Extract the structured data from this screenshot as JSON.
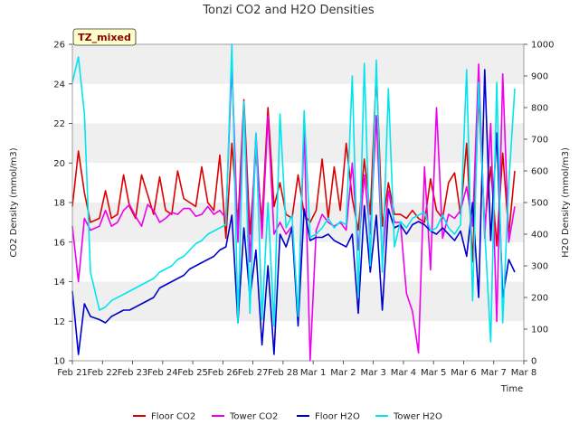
{
  "chart_data": {
    "type": "line",
    "title": "Tonzi CO2 and H2O Densities",
    "xlabel": "Time",
    "ylabel_left": "CO2 Density (mmol/m3)",
    "ylabel_right": "H2O Density (mmol/m3)",
    "tag": "TZ_mixed",
    "x_ticks": [
      "Feb 21",
      "Feb 22",
      "Feb 23",
      "Feb 24",
      "Feb 25",
      "Feb 26",
      "Feb 27",
      "Feb 28",
      "Mar 1",
      "Mar 2",
      "Mar 3",
      "Mar 4",
      "Mar 5",
      "Mar 6",
      "Mar 7",
      "Mar 8"
    ],
    "xlim_days": [
      0,
      15
    ],
    "ylim_left": [
      10,
      26
    ],
    "y_ticks_left": [
      10,
      12,
      14,
      16,
      18,
      20,
      22,
      24,
      26
    ],
    "ylim_right": [
      0,
      1000
    ],
    "y_ticks_right": [
      0,
      100,
      200,
      300,
      400,
      500,
      600,
      700,
      800,
      900,
      1000
    ],
    "grid": "horizontal bands",
    "legend_position": "bottom",
    "series": [
      {
        "name": "Floor CO2",
        "axis": "left",
        "color": "#dd0000",
        "x": [
          0.0,
          0.2,
          0.4,
          0.6,
          0.9,
          1.1,
          1.3,
          1.5,
          1.7,
          1.9,
          2.1,
          2.3,
          2.5,
          2.7,
          2.9,
          3.1,
          3.3,
          3.5,
          3.7,
          3.9,
          4.1,
          4.3,
          4.5,
          4.7,
          4.9,
          5.1,
          5.3,
          5.5,
          5.7,
          5.9,
          6.1,
          6.3,
          6.5,
          6.7,
          6.9,
          7.1,
          7.3,
          7.5,
          7.7,
          7.9,
          8.1,
          8.3,
          8.5,
          8.7,
          8.9,
          9.1,
          9.3,
          9.5,
          9.7,
          9.9,
          10.1,
          10.3,
          10.5,
          10.7,
          10.9,
          11.1,
          11.3,
          11.5,
          11.7,
          11.9,
          12.1,
          12.3,
          12.5,
          12.7,
          12.9,
          13.1,
          13.3,
          13.5,
          13.7,
          13.9,
          14.1,
          14.3,
          14.5,
          14.7
        ],
        "values": [
          17.8,
          20.6,
          18.5,
          17.0,
          17.2,
          18.6,
          17.2,
          17.4,
          19.4,
          17.8,
          17.2,
          19.4,
          18.4,
          17.4,
          19.3,
          17.6,
          17.4,
          19.6,
          18.2,
          18.0,
          17.8,
          19.8,
          18.0,
          17.6,
          20.4,
          16.2,
          21.0,
          17.0,
          23.2,
          16.4,
          20.5,
          17.0,
          22.8,
          17.8,
          19.0,
          17.4,
          17.2,
          19.4,
          17.4,
          17.0,
          17.6,
          20.2,
          17.2,
          19.8,
          17.6,
          21.0,
          18.2,
          16.6,
          20.2,
          17.4,
          24.6,
          16.8,
          19.0,
          17.4,
          17.4,
          17.2,
          17.6,
          17.2,
          17.0,
          19.2,
          17.6,
          17.2,
          19.0,
          19.5,
          17.4,
          21.0,
          15.0,
          23.5,
          16.8,
          19.8,
          15.8,
          20.5,
          16.4,
          19.6
        ]
      },
      {
        "name": "Tower CO2",
        "axis": "left",
        "color": "#ee00ee",
        "x": [
          0.0,
          0.2,
          0.4,
          0.6,
          0.9,
          1.1,
          1.3,
          1.5,
          1.7,
          1.9,
          2.1,
          2.3,
          2.5,
          2.7,
          2.9,
          3.1,
          3.3,
          3.5,
          3.7,
          3.9,
          4.1,
          4.3,
          4.5,
          4.7,
          4.9,
          5.1,
          5.3,
          5.5,
          5.7,
          5.9,
          6.1,
          6.3,
          6.5,
          6.7,
          6.9,
          7.1,
          7.3,
          7.5,
          7.7,
          7.9,
          8.1,
          8.3,
          8.5,
          8.7,
          8.9,
          9.1,
          9.3,
          9.5,
          9.7,
          9.9,
          10.1,
          10.3,
          10.5,
          10.7,
          10.9,
          11.1,
          11.3,
          11.5,
          11.7,
          11.9,
          12.1,
          12.3,
          12.5,
          12.7,
          12.9,
          13.1,
          13.3,
          13.5,
          13.7,
          13.9,
          14.1,
          14.3,
          14.5,
          14.7
        ],
        "values": [
          16.8,
          14.0,
          17.2,
          16.6,
          16.8,
          17.6,
          16.8,
          17.0,
          17.6,
          17.9,
          17.3,
          16.8,
          17.9,
          17.6,
          17.0,
          17.2,
          17.5,
          17.4,
          17.7,
          17.7,
          17.3,
          17.4,
          17.8,
          17.4,
          17.6,
          17.2,
          25.0,
          16.0,
          23.0,
          15.0,
          21.5,
          16.2,
          22.4,
          16.4,
          17.0,
          16.4,
          16.8,
          12.0,
          21.8,
          10.0,
          16.6,
          17.4,
          17.0,
          16.8,
          17.0,
          16.6,
          20.0,
          15.6,
          19.4,
          16.4,
          22.4,
          15.0,
          18.6,
          17.0,
          17.0,
          13.4,
          12.5,
          10.4,
          19.8,
          14.6,
          22.8,
          16.2,
          17.4,
          17.2,
          17.6,
          18.8,
          16.8,
          25.0,
          16.2,
          22.0,
          12.0,
          24.5,
          16.0,
          17.8
        ]
      },
      {
        "name": "Floor H2O",
        "axis": "right",
        "color": "#0000cc",
        "x": [
          0.0,
          0.2,
          0.4,
          0.6,
          0.9,
          1.1,
          1.3,
          1.5,
          1.7,
          1.9,
          2.1,
          2.3,
          2.5,
          2.7,
          2.9,
          3.1,
          3.3,
          3.5,
          3.7,
          3.9,
          4.1,
          4.3,
          4.5,
          4.7,
          4.9,
          5.1,
          5.3,
          5.5,
          5.7,
          5.9,
          6.1,
          6.3,
          6.5,
          6.7,
          6.9,
          7.1,
          7.3,
          7.5,
          7.7,
          7.9,
          8.1,
          8.3,
          8.5,
          8.7,
          8.9,
          9.1,
          9.3,
          9.5,
          9.7,
          9.9,
          10.1,
          10.3,
          10.5,
          10.7,
          10.9,
          11.1,
          11.3,
          11.5,
          11.7,
          11.9,
          12.1,
          12.3,
          12.5,
          12.7,
          12.9,
          13.1,
          13.3,
          13.5,
          13.7,
          13.9,
          14.1,
          14.3,
          14.5,
          14.7
        ],
        "values": [
          220,
          20,
          180,
          140,
          130,
          120,
          140,
          150,
          160,
          160,
          170,
          180,
          190,
          200,
          230,
          240,
          250,
          260,
          270,
          290,
          300,
          310,
          320,
          330,
          350,
          360,
          460,
          120,
          420,
          200,
          350,
          50,
          300,
          20,
          400,
          360,
          420,
          110,
          480,
          380,
          390,
          390,
          400,
          380,
          370,
          360,
          400,
          150,
          490,
          280,
          460,
          160,
          480,
          420,
          430,
          400,
          430,
          440,
          430,
          410,
          400,
          420,
          400,
          380,
          410,
          330,
          500,
          200,
          920,
          380,
          720,
          200,
          320,
          280
        ]
      },
      {
        "name": "Tower H2O",
        "axis": "right",
        "color": "#00e5ee",
        "x": [
          0.0,
          0.2,
          0.4,
          0.6,
          0.9,
          1.1,
          1.3,
          1.5,
          1.7,
          1.9,
          2.1,
          2.3,
          2.5,
          2.7,
          2.9,
          3.1,
          3.3,
          3.5,
          3.7,
          3.9,
          4.1,
          4.3,
          4.5,
          4.7,
          4.9,
          5.1,
          5.3,
          5.5,
          5.7,
          5.9,
          6.1,
          6.3,
          6.5,
          6.7,
          6.9,
          7.1,
          7.3,
          7.5,
          7.7,
          7.9,
          8.1,
          8.3,
          8.5,
          8.7,
          8.9,
          9.1,
          9.3,
          9.5,
          9.7,
          9.9,
          10.1,
          10.3,
          10.5,
          10.7,
          10.9,
          11.1,
          11.3,
          11.5,
          11.7,
          11.9,
          12.1,
          12.3,
          12.5,
          12.7,
          12.9,
          13.1,
          13.3,
          13.5,
          13.7,
          13.9,
          14.1,
          14.3,
          14.5,
          14.7
        ],
        "values": [
          880,
          960,
          780,
          280,
          160,
          170,
          190,
          200,
          210,
          220,
          230,
          240,
          250,
          260,
          280,
          290,
          300,
          320,
          330,
          350,
          370,
          380,
          400,
          410,
          420,
          430,
          1000,
          120,
          820,
          150,
          720,
          130,
          500,
          110,
          780,
          420,
          460,
          140,
          790,
          390,
          400,
          420,
          450,
          420,
          440,
          430,
          900,
          200,
          940,
          300,
          950,
          280,
          860,
          360,
          440,
          420,
          450,
          460,
          470,
          410,
          420,
          460,
          420,
          400,
          430,
          920,
          190,
          880,
          410,
          60,
          880,
          120,
          560,
          860
        ]
      }
    ]
  }
}
